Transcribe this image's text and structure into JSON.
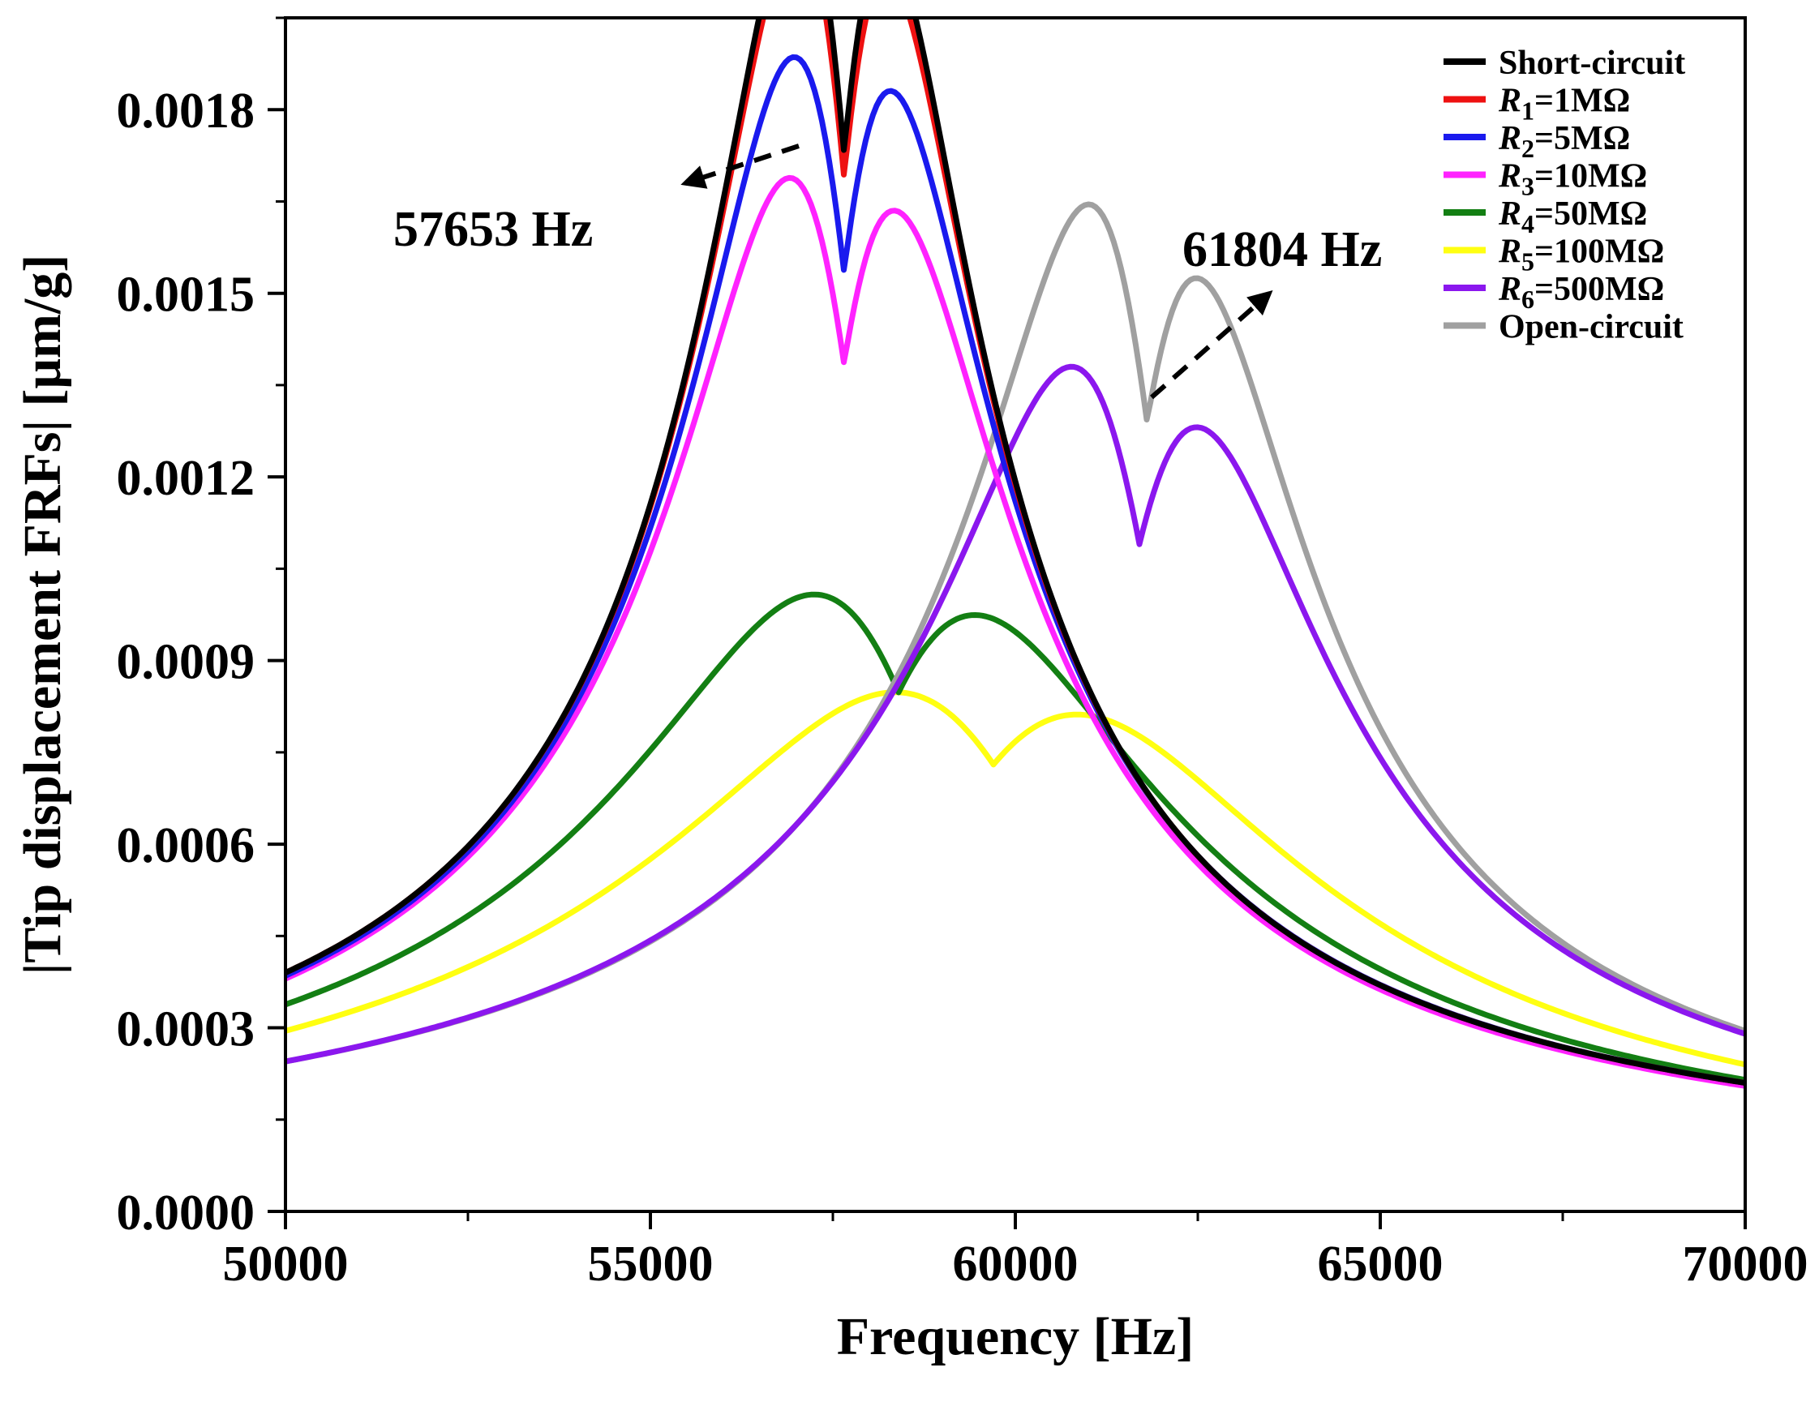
{
  "chart_data": {
    "type": "line",
    "title": "",
    "xlabel": "Frequency [Hz]",
    "ylabel": "|Tip displacement FRFs| [μm/g]",
    "xlim": [
      50000,
      70000
    ],
    "ylim": [
      0.0,
      0.00195
    ],
    "xticks": [
      50000,
      55000,
      60000,
      65000,
      70000
    ],
    "xtick_labels": [
      "50000",
      "55000",
      "60000",
      "65000",
      "70000"
    ],
    "yticks": [
      0.0,
      0.0003,
      0.0006,
      0.0009,
      0.0012,
      0.0015,
      0.0018
    ],
    "ytick_labels": [
      "0.0000",
      "0.0003",
      "0.0006",
      "0.0009",
      "0.0012",
      "0.0015",
      "0.0018"
    ],
    "grid": false,
    "legend_position": "top-right",
    "series": [
      {
        "name": "Short-circuit",
        "label_main": "Short-circuit",
        "label_sub": "",
        "label_rest": "",
        "color": "#000000",
        "peak_freq": 57653,
        "peak_value": 0.00173,
        "half_width": 1400,
        "tail_at_50000": 0.00039,
        "tail_at_70000": 0.00021
      },
      {
        "name": "R1=1MΩ",
        "label_main": "R",
        "label_sub": "1",
        "label_rest": "=1MΩ",
        "color": "#ee1111",
        "peak_freq": 57653,
        "peak_value": 0.00169,
        "half_width": 1430,
        "tail_at_50000": 0.00039,
        "tail_at_70000": 0.00021
      },
      {
        "name": "R2=5MΩ",
        "label_main": "R",
        "label_sub": "2",
        "label_rest": "=5MΩ",
        "color": "#1a1aee",
        "peak_freq": 57653,
        "peak_value": 0.001535,
        "half_width": 1580,
        "tail_at_50000": 0.000385,
        "tail_at_70000": 0.00021
      },
      {
        "name": "R3=10MΩ",
        "label_main": "R",
        "label_sub": "3",
        "label_rest": "=10MΩ",
        "color": "#ff22ff",
        "peak_freq": 57653,
        "peak_value": 0.001385,
        "half_width": 1750,
        "tail_at_50000": 0.00038,
        "tail_at_70000": 0.000205
      },
      {
        "name": "R4=50MΩ",
        "label_main": "R",
        "label_sub": "4",
        "label_rest": "=50MΩ",
        "color": "#137f13",
        "peak_freq": 58400,
        "peak_value": 0.000848,
        "half_width": 2900,
        "tail_at_50000": 0.000338,
        "tail_at_70000": 0.000215
      },
      {
        "name": "R5=100MΩ",
        "label_main": "R",
        "label_sub": "5",
        "label_rest": "=100MΩ",
        "color": "#ffff11",
        "peak_freq": 59700,
        "peak_value": 0.00073,
        "half_width": 3600,
        "tail_at_50000": 0.000295,
        "tail_at_70000": 0.00024
      },
      {
        "name": "R6=500MΩ",
        "label_main": "R",
        "label_sub": "6",
        "label_rest": "=500MΩ",
        "color": "#8b17ee",
        "peak_freq": 61700,
        "peak_value": 0.00109,
        "half_width": 2030,
        "tail_at_50000": 0.000245,
        "tail_at_70000": 0.00029
      },
      {
        "name": "Open-circuit",
        "label_main": "Open-circuit",
        "label_sub": "",
        "label_rest": "",
        "color": "#a0a0a0",
        "peak_freq": 61804,
        "peak_value": 0.00129,
        "half_width": 1720,
        "tail_at_50000": 0.000245,
        "tail_at_70000": 0.000295
      }
    ],
    "annotations": [
      {
        "text": "57653 Hz",
        "frequency": 57653
      },
      {
        "text": "61804 Hz",
        "frequency": 61804
      }
    ]
  }
}
